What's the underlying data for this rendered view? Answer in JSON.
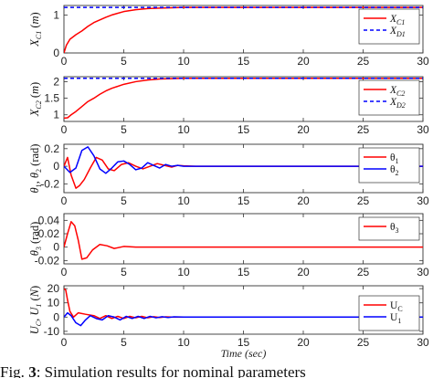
{
  "chart_data": [
    {
      "type": "line",
      "xlim": [
        0,
        30
      ],
      "xticks": [
        "0",
        "5",
        "10",
        "15",
        "20",
        "25",
        "30"
      ],
      "ylim": [
        0,
        1.25
      ],
      "yticks": [
        "0",
        "1"
      ],
      "ylabel": "X_C1 (m)",
      "legend": "top-right",
      "series": [
        {
          "name": "X_C1",
          "color": "#ff0000",
          "style": "solid",
          "x": [
            0,
            0.2,
            0.5,
            1,
            1.5,
            2,
            2.5,
            3,
            3.5,
            4,
            5,
            6,
            7,
            8,
            9,
            10,
            12,
            15,
            20,
            25,
            30
          ],
          "y": [
            0,
            0.2,
            0.36,
            0.48,
            0.58,
            0.7,
            0.8,
            0.87,
            0.94,
            1.0,
            1.09,
            1.14,
            1.17,
            1.18,
            1.19,
            1.2,
            1.2,
            1.2,
            1.2,
            1.2,
            1.2
          ]
        },
        {
          "name": "X_D1",
          "color": "#0000ff",
          "style": "dashed",
          "x": [
            0,
            30
          ],
          "y": [
            1.2,
            1.2
          ]
        }
      ]
    },
    {
      "type": "line",
      "xlim": [
        0,
        30
      ],
      "xticks": [
        "0",
        "5",
        "10",
        "15",
        "20",
        "25",
        "30"
      ],
      "ylim": [
        0.8,
        2.15
      ],
      "yticks": [
        "1",
        "1.5",
        "2"
      ],
      "ylabel": "X_C2 (m)",
      "legend": "top-right",
      "series": [
        {
          "name": "X_C2",
          "color": "#ff0000",
          "style": "solid",
          "x": [
            0,
            0.3,
            0.6,
            1,
            1.5,
            2,
            2.5,
            3,
            3.5,
            4,
            5,
            6,
            7,
            8,
            9,
            10,
            12,
            15,
            20,
            25,
            30
          ],
          "y": [
            0.9,
            0.91,
            1.0,
            1.1,
            1.25,
            1.4,
            1.5,
            1.62,
            1.72,
            1.8,
            1.92,
            2.0,
            2.05,
            2.08,
            2.09,
            2.1,
            2.1,
            2.1,
            2.1,
            2.1,
            2.1
          ]
        },
        {
          "name": "X_D2",
          "color": "#0000ff",
          "style": "dashed",
          "x": [
            0,
            30
          ],
          "y": [
            2.1,
            2.1
          ]
        }
      ]
    },
    {
      "type": "line",
      "xlim": [
        0,
        30
      ],
      "xticks": [
        "0",
        "5",
        "10",
        "15",
        "20",
        "25",
        "30"
      ],
      "ylim": [
        -0.3,
        0.25
      ],
      "yticks": [
        "-0.2",
        "0",
        "0.2"
      ],
      "ylabel": "θ1, θ2 (rad)",
      "legend": "top-right",
      "series": [
        {
          "name": "θ1",
          "color": "#ff0000",
          "style": "solid",
          "x": [
            0,
            0.3,
            0.6,
            1,
            1.3,
            1.7,
            2.2,
            2.7,
            3.2,
            3.7,
            4.2,
            4.8,
            5.4,
            6,
            6.6,
            7.2,
            7.8,
            8.4,
            9,
            9.5,
            10,
            11,
            15,
            20,
            25,
            30
          ],
          "y": [
            0,
            0.1,
            -0.1,
            -0.25,
            -0.22,
            -0.15,
            -0.02,
            0.1,
            0.07,
            -0.03,
            -0.05,
            0.02,
            0.04,
            0.0,
            -0.03,
            0.0,
            0.03,
            0.01,
            -0.01,
            0.01,
            0.005,
            0,
            0,
            0,
            0,
            0
          ]
        },
        {
          "name": "θ2",
          "color": "#0000ff",
          "style": "solid",
          "x": [
            0,
            0.5,
            1,
            1.5,
            2,
            2.5,
            3,
            3.5,
            4,
            4.5,
            5,
            5.5,
            6,
            6.5,
            7,
            7.5,
            8,
            8.5,
            9,
            9.5,
            10,
            11,
            15,
            20,
            25,
            30
          ],
          "y": [
            0,
            -0.07,
            -0.02,
            0.18,
            0.22,
            0.12,
            -0.03,
            -0.08,
            -0.02,
            0.05,
            0.06,
            0.02,
            -0.04,
            -0.02,
            0.04,
            0.01,
            -0.02,
            0.02,
            0.0,
            0.01,
            0.0,
            0,
            0,
            0,
            0,
            0
          ]
        }
      ]
    },
    {
      "type": "line",
      "xlim": [
        0,
        30
      ],
      "xticks": [
        "0",
        "5",
        "10",
        "15",
        "20",
        "25",
        "30"
      ],
      "ylim": [
        -0.025,
        0.05
      ],
      "yticks": [
        "-0.02",
        "0",
        "0.02",
        "0.04"
      ],
      "ylabel": "θ3 (rad)",
      "legend": "top-right",
      "series": [
        {
          "name": "θ3",
          "color": "#ff0000",
          "style": "solid",
          "x": [
            0,
            0.3,
            0.6,
            0.9,
            1.2,
            1.5,
            1.9,
            2.4,
            3,
            3.6,
            4.2,
            5,
            6,
            7,
            8,
            10,
            15,
            20,
            25,
            30
          ],
          "y": [
            0,
            0.02,
            0.038,
            0.032,
            0.01,
            -0.018,
            -0.016,
            -0.004,
            0.004,
            0.002,
            -0.002,
            0.001,
            0,
            0,
            0,
            0,
            0,
            0,
            0,
            0
          ]
        }
      ]
    },
    {
      "type": "line",
      "xlim": [
        0,
        30
      ],
      "xticks": [
        "0",
        "5",
        "10",
        "15",
        "20",
        "25",
        "30"
      ],
      "xlabel": "Time (sec)",
      "ylim": [
        -12,
        22
      ],
      "yticks": [
        "-10",
        "0",
        "10",
        "20"
      ],
      "ylabel": "U_C, U_1 (N)",
      "legend": "bottom-right",
      "series": [
        {
          "name": "U_C",
          "color": "#ff0000",
          "style": "solid",
          "x": [
            0,
            0.15,
            0.3,
            0.5,
            0.8,
            1.2,
            1.8,
            2.5,
            3,
            3.5,
            4,
            4.5,
            5,
            5.5,
            6,
            6.5,
            7,
            7.5,
            8,
            8.5,
            9,
            10,
            12,
            15,
            20,
            25,
            30
          ],
          "y": [
            20,
            19,
            12,
            4,
            0,
            3,
            2,
            1,
            -1,
            1,
            -1,
            0.5,
            -1,
            0.5,
            -0.5,
            0.5,
            -0.5,
            0.3,
            -0.3,
            0.2,
            0,
            0,
            0,
            0,
            0,
            0,
            0
          ]
        },
        {
          "name": "U_1",
          "color": "#0000ff",
          "style": "solid",
          "x": [
            0,
            0.3,
            0.6,
            1,
            1.4,
            1.8,
            2.2,
            2.7,
            3.2,
            3.7,
            4.2,
            4.7,
            5.2,
            5.7,
            6.2,
            6.7,
            7.2,
            7.7,
            8.2,
            8.7,
            9.2,
            10,
            12,
            15,
            20,
            25,
            30
          ],
          "y": [
            0,
            3,
            1,
            -4,
            -6,
            -2,
            1,
            -1,
            -2,
            1,
            0,
            -2,
            0.5,
            -1,
            0.5,
            -1,
            0.5,
            -0.5,
            0.3,
            -0.3,
            0.2,
            0,
            0,
            0,
            0,
            0,
            0
          ]
        }
      ]
    }
  ],
  "legend_labels": {
    "xc1": {
      "main": "X",
      "sub": "C1"
    },
    "xd1": {
      "main": "X",
      "sub": "D1"
    },
    "xc2": {
      "main": "X",
      "sub": "C2"
    },
    "xd2": {
      "main": "X",
      "sub": "D2"
    },
    "th1": {
      "main": "θ",
      "sub": "1"
    },
    "th2": {
      "main": "θ",
      "sub": "2"
    },
    "th3": {
      "main": "θ",
      "sub": "3"
    },
    "uc": {
      "main": "U",
      "sub": "C"
    },
    "u1": {
      "main": "U",
      "sub": "1"
    }
  },
  "caption": {
    "prefix": "Fig. ",
    "number": "3",
    "text": ": Simulation results for nominal parameters"
  }
}
